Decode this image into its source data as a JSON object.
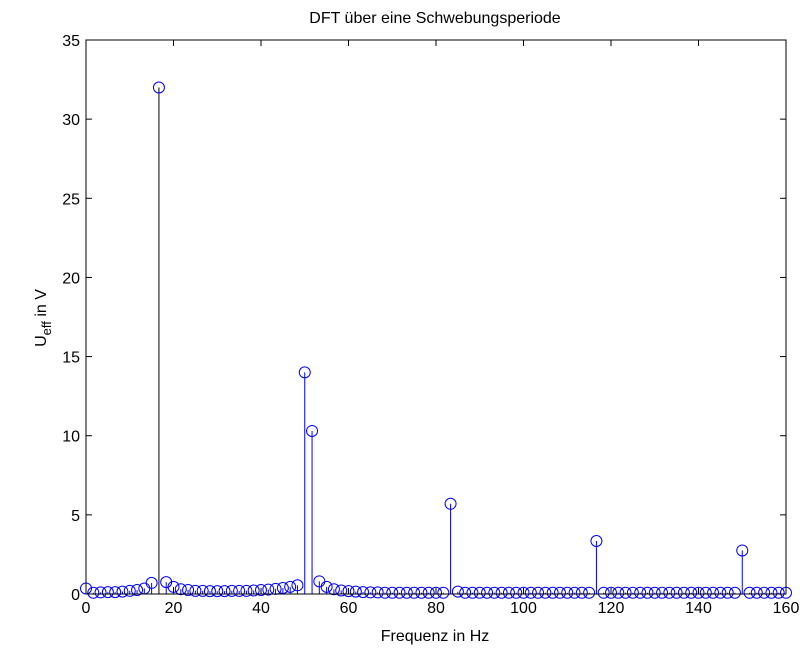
{
  "chart_data": {
    "type": "stem",
    "title": "DFT über eine Schwebungsperiode",
    "xlabel": "Frequenz in Hz",
    "ylabel_main": "U",
    "ylabel_sub": "eff",
    "ylabel_rest": " in V",
    "xlim": [
      0,
      160
    ],
    "ylim": [
      0,
      35
    ],
    "xticks": [
      0,
      20,
      40,
      60,
      80,
      100,
      120,
      140,
      160
    ],
    "yticks": [
      0,
      5,
      10,
      15,
      20,
      25,
      30,
      35
    ],
    "grid": false,
    "series": [
      {
        "color": "#0000ff",
        "highlight_color": "#000000",
        "x": [
          0,
          1.67,
          3.33,
          5,
          6.67,
          8.33,
          10,
          11.67,
          13.33,
          15,
          16.67,
          18.33,
          20,
          21.67,
          23.33,
          25,
          26.67,
          28.33,
          30,
          31.67,
          33.33,
          35,
          36.67,
          38.33,
          40,
          41.67,
          43.33,
          45,
          46.67,
          48.33,
          50,
          51.67,
          53.33,
          55,
          56.67,
          58.33,
          60,
          61.67,
          63.33,
          65,
          66.67,
          68.33,
          70,
          71.67,
          73.33,
          75,
          76.67,
          78.33,
          80,
          81.67,
          83.33,
          85,
          86.67,
          88.33,
          90,
          91.67,
          93.33,
          95,
          96.67,
          98.33,
          100,
          101.67,
          103.33,
          105,
          106.67,
          108.33,
          110,
          111.67,
          113.33,
          115,
          116.67,
          118.33,
          120,
          121.67,
          123.33,
          125,
          126.67,
          128.33,
          130,
          131.67,
          133.33,
          135,
          136.67,
          138.33,
          140,
          141.67,
          143.33,
          145,
          146.67,
          148.33,
          150,
          151.67,
          153.33,
          155,
          156.67,
          158.33,
          160
        ],
        "y": [
          0.35,
          0.08,
          0.1,
          0.12,
          0.12,
          0.15,
          0.2,
          0.25,
          0.35,
          0.7,
          32,
          0.75,
          0.45,
          0.3,
          0.25,
          0.2,
          0.2,
          0.18,
          0.18,
          0.18,
          0.2,
          0.2,
          0.2,
          0.22,
          0.25,
          0.28,
          0.32,
          0.38,
          0.45,
          0.55,
          14,
          10.3,
          0.8,
          0.45,
          0.3,
          0.22,
          0.18,
          0.15,
          0.12,
          0.1,
          0.1,
          0.08,
          0.08,
          0.08,
          0.08,
          0.08,
          0.08,
          0.08,
          0.08,
          0.08,
          5.7,
          0.15,
          0.08,
          0.08,
          0.08,
          0.08,
          0.08,
          0.08,
          0.08,
          0.08,
          0.08,
          0.08,
          0.08,
          0.08,
          0.08,
          0.08,
          0.08,
          0.08,
          0.08,
          0.08,
          3.35,
          0.08,
          0.08,
          0.08,
          0.08,
          0.08,
          0.08,
          0.08,
          0.08,
          0.08,
          0.08,
          0.08,
          0.08,
          0.08,
          0.08,
          0.08,
          0.08,
          0.08,
          0.08,
          0.08,
          2.75,
          0.08,
          0.08,
          0.08,
          0.08,
          0.08,
          0.08
        ]
      }
    ]
  }
}
